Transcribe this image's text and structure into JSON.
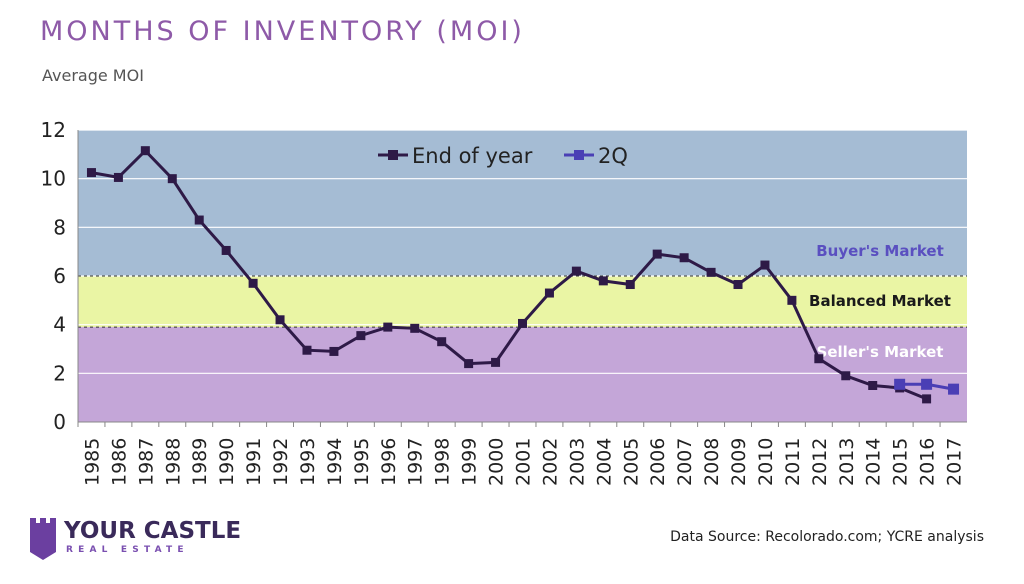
{
  "header": {
    "title": "MONTHS OF INVENTORY (MOI)",
    "subtitle": "Average MOI"
  },
  "footer": {
    "source": "Data Source: Recolorado.com; YCRE analysis",
    "brand_name": "YOUR CASTLE",
    "brand_tagline": "REAL ESTATE"
  },
  "chart_data": {
    "type": "line",
    "ylim": [
      0,
      12
    ],
    "yticks": [
      0,
      2,
      4,
      6,
      8,
      10,
      12
    ],
    "categories": [
      "1985",
      "1986",
      "1987",
      "1988",
      "1989",
      "1990",
      "1991",
      "1992",
      "1993",
      "1994",
      "1995",
      "1996",
      "1997",
      "1998",
      "1999",
      "2000",
      "2001",
      "2002",
      "2003",
      "2004",
      "2005",
      "2006",
      "2007",
      "2008",
      "2009",
      "2010",
      "2011",
      "2012",
      "2013",
      "2014",
      "2015",
      "2016",
      "2017"
    ],
    "grid": true,
    "legend_position": "top-center",
    "series": [
      {
        "name": "End of year",
        "color": "#2e1a47",
        "values": [
          10.25,
          10.05,
          11.15,
          10.0,
          8.3,
          7.05,
          5.7,
          4.2,
          2.95,
          2.9,
          3.55,
          3.9,
          3.85,
          3.3,
          2.4,
          2.45,
          4.05,
          5.3,
          6.2,
          5.8,
          5.65,
          6.9,
          6.75,
          6.15,
          5.65,
          6.45,
          5.0,
          2.6,
          1.9,
          1.5,
          1.4,
          0.95,
          null
        ]
      },
      {
        "name": "2Q",
        "color": "#4a3fb5",
        "values": [
          null,
          null,
          null,
          null,
          null,
          null,
          null,
          null,
          null,
          null,
          null,
          null,
          null,
          null,
          null,
          null,
          null,
          null,
          null,
          null,
          null,
          null,
          null,
          null,
          null,
          null,
          null,
          null,
          null,
          null,
          1.55,
          1.55,
          1.35
        ]
      }
    ],
    "bands": [
      {
        "label": "Buyer's Market",
        "from": 6,
        "to": 12,
        "color": "#a5bcd4",
        "label_color": "#5a4fc0"
      },
      {
        "label": "Balanced Market",
        "from": 3.9,
        "to": 6,
        "color": "#eaf5a4",
        "label_color": "#1a1a1a"
      },
      {
        "label": "Seller's Market",
        "from": 0,
        "to": 3.9,
        "color": "#c4a6d8",
        "label_color": "#ffffff"
      }
    ]
  }
}
